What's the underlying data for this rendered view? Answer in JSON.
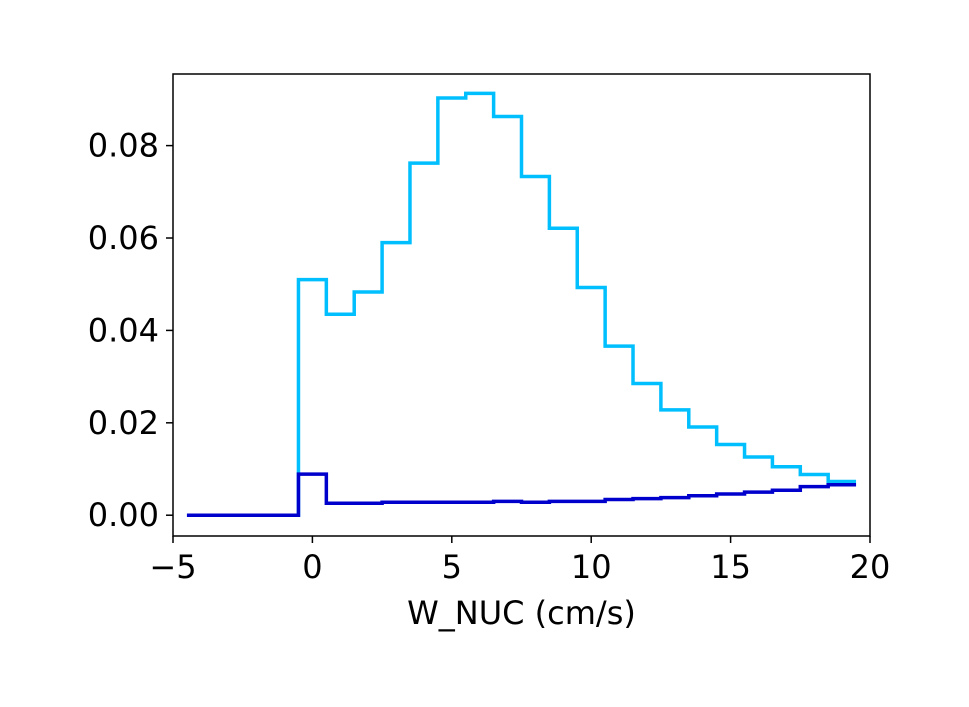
{
  "chart_data": {
    "type": "line",
    "style": "step-histogram",
    "xlabel": "W_NUC (cm/s)",
    "ylabel": "",
    "title": "",
    "xlim": [
      -5,
      20
    ],
    "ylim": [
      -0.0045,
      0.0955
    ],
    "x_ticks": [
      -5,
      0,
      5,
      10,
      15,
      20
    ],
    "x_tick_labels": [
      "−5",
      "0",
      "5",
      "10",
      "15",
      "20"
    ],
    "y_ticks": [
      0.0,
      0.02,
      0.04,
      0.06,
      0.08
    ],
    "y_tick_labels": [
      "0.00",
      "0.02",
      "0.04",
      "0.06",
      "0.08"
    ],
    "grid": false,
    "bin_edges": [
      -4.5,
      -3.5,
      -2.5,
      -1.5,
      -0.5,
      0.5,
      1.5,
      2.5,
      3.5,
      4.5,
      5.5,
      6.5,
      7.5,
      8.5,
      9.5,
      10.5,
      11.5,
      12.5,
      13.5,
      14.5,
      15.5,
      16.5,
      17.5,
      18.5,
      19.5
    ],
    "series": [
      {
        "color": "#00bfff",
        "values": [
          0,
          0,
          0,
          0,
          0.051,
          0.0435,
          0.0483,
          0.059,
          0.0762,
          0.0903,
          0.0913,
          0.0863,
          0.0733,
          0.0621,
          0.0493,
          0.0366,
          0.0285,
          0.0228,
          0.0191,
          0.0153,
          0.0126,
          0.0105,
          0.0088,
          0.0073
        ]
      },
      {
        "color": "#0000cd",
        "values": [
          0,
          0,
          0,
          0,
          0.0089,
          0.0026,
          0.0026,
          0.0028,
          0.0028,
          0.0028,
          0.0028,
          0.003,
          0.0028,
          0.003,
          0.003,
          0.0034,
          0.0036,
          0.0038,
          0.0042,
          0.0046,
          0.005,
          0.0054,
          0.0062,
          0.0066
        ]
      }
    ]
  }
}
